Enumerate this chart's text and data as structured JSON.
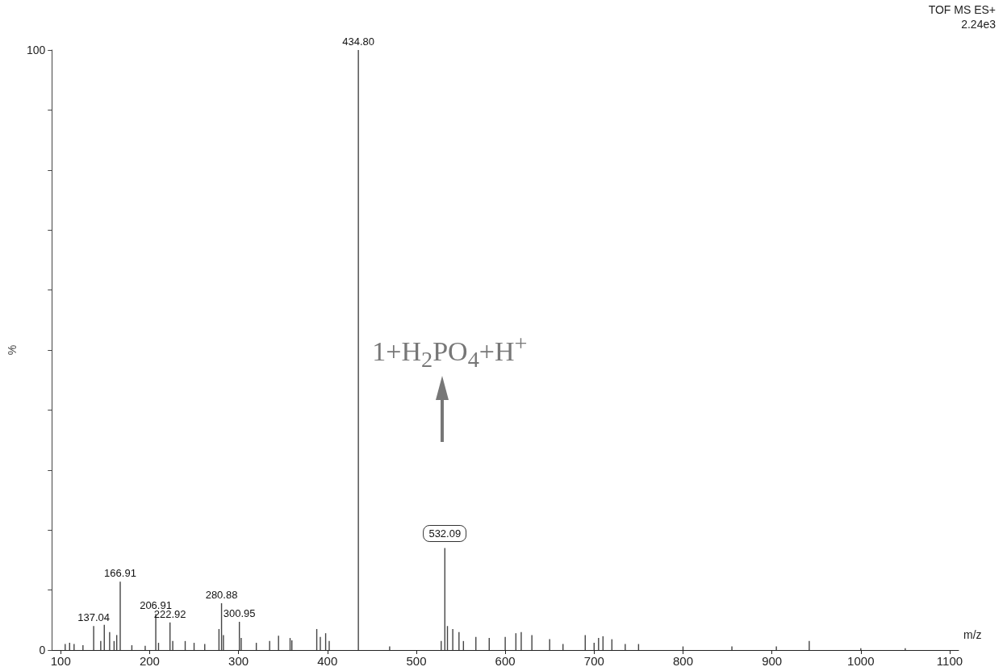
{
  "chart_data": {
    "type": "bar",
    "xlabel": "m/z",
    "ylabel": "%",
    "x": [
      105,
      110,
      115,
      125,
      137.04,
      145,
      149,
      155,
      160,
      163,
      166.91,
      180,
      195,
      206.91,
      210,
      222.92,
      226,
      240,
      250,
      262,
      278,
      280.88,
      283,
      300.95,
      303,
      320,
      335,
      345,
      358,
      360,
      388,
      392,
      398,
      402,
      434.8,
      470,
      528,
      532.09,
      535,
      541,
      548,
      553,
      567,
      582,
      600,
      612,
      618,
      630,
      650,
      665,
      690,
      700,
      705,
      710,
      720,
      735,
      750,
      800,
      855,
      905,
      942,
      1000,
      1050
    ],
    "values": [
      1,
      1.2,
      1,
      0.8,
      4,
      1.5,
      4.2,
      3,
      1.5,
      2.5,
      11.4,
      0.8,
      0.7,
      6,
      1.2,
      4.6,
      1.5,
      1.5,
      1.2,
      1,
      3.5,
      7.8,
      2.5,
      4.7,
      2,
      1.2,
      1.5,
      2.4,
      2,
      1.6,
      3.5,
      2.2,
      2.8,
      1.5,
      100,
      0.6,
      1.5,
      17,
      4,
      3.5,
      3,
      1.5,
      2.2,
      2,
      2.2,
      2.8,
      3,
      2.5,
      1.8,
      1,
      2.5,
      1.2,
      2,
      2.3,
      1.8,
      1,
      1,
      0.6,
      0.6,
      0.6,
      1.5,
      0.3,
      0.3
    ],
    "color": "#444444",
    "xlim": [
      90,
      1110
    ],
    "xticks": [
      100,
      200,
      300,
      400,
      500,
      600,
      700,
      800,
      900,
      1000,
      1100
    ],
    "ylim": [
      0,
      100
    ],
    "yticks": [
      0,
      {
        "value": 10,
        "label": null
      },
      {
        "value": 20,
        "label": null
      },
      {
        "value": 30,
        "label": null
      },
      {
        "value": 40,
        "label": null
      },
      {
        "value": 50,
        "label": null
      },
      {
        "value": 60,
        "label": null
      },
      {
        "value": 70,
        "label": null
      },
      {
        "value": 80,
        "label": null
      },
      {
        "value": 90,
        "label": null
      },
      100
    ],
    "grid": false,
    "annotations": [
      "TOF MS ES+",
      "2.24e3",
      {
        "text": "137.04",
        "x": 137.04,
        "y": 4
      },
      {
        "text": "166.91",
        "x": 166.91,
        "y": 11.4
      },
      {
        "text": "206.91",
        "x": 206.91,
        "y": 6
      },
      {
        "text": "222.92",
        "x": 222.92,
        "y": 4.6
      },
      {
        "text": "280.88",
        "x": 280.88,
        "y": 7.8
      },
      {
        "text": "300.95",
        "x": 300.95,
        "y": 4.7
      },
      {
        "text": "434.80",
        "x": 434.8,
        "y": 100
      },
      {
        "text": "532.09",
        "x": 532.09,
        "y": 17
      },
      "1+H$_{2}$PO$_{4}$+H$^{+}$"
    ]
  }
}
